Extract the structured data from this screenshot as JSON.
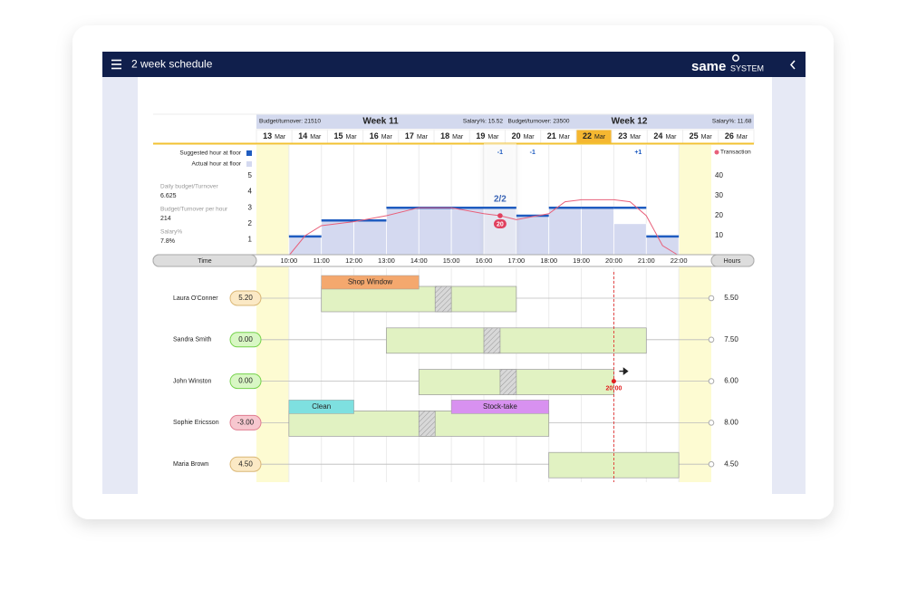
{
  "header": {
    "title": "2 week schedule",
    "logo": "same",
    "logo_suffix": "SYSTEM"
  },
  "weeks": [
    {
      "budget": "Budget/turnover: 21510",
      "title": "Week 11",
      "salary": "Salary%: 15.52"
    },
    {
      "budget": "Budget/turnover: 23500",
      "title": "Week 12",
      "salary": "Salary%: 11.68"
    }
  ],
  "days": [
    {
      "day": "13",
      "month": "Mar"
    },
    {
      "day": "14",
      "month": "Mar"
    },
    {
      "day": "15",
      "month": "Mar"
    },
    {
      "day": "16",
      "month": "Mar"
    },
    {
      "day": "17",
      "month": "Mar"
    },
    {
      "day": "18",
      "month": "Mar"
    },
    {
      "day": "19",
      "month": "Mar"
    },
    {
      "day": "20",
      "month": "Mar"
    },
    {
      "day": "21",
      "month": "Mar"
    },
    {
      "day": "22",
      "month": "Mar"
    },
    {
      "day": "23",
      "month": "Mar"
    },
    {
      "day": "24",
      "month": "Mar"
    },
    {
      "day": "25",
      "month": "Mar"
    },
    {
      "day": "26",
      "month": "Mar"
    }
  ],
  "selected_day": 9,
  "stats": [
    {
      "label": "Daily budget/Turnover",
      "value": "6.625"
    },
    {
      "label": "Budget/Turnover per hour",
      "value": "214"
    },
    {
      "label": "Salary%",
      "value": "7.8%"
    }
  ],
  "chart_data": {
    "type": "bar",
    "x": [
      10,
      11,
      12,
      13,
      14,
      15,
      16,
      17,
      18,
      19,
      20,
      21
    ],
    "series": [
      {
        "name": "Actual hour at floor",
        "color": "#d4d9f0",
        "values": [
          1.2,
          2.2,
          2.2,
          3,
          3,
          3,
          3,
          2.5,
          3,
          3,
          2,
          1.2
        ]
      },
      {
        "name": "Suggested hour at floor",
        "color": "#1f5cc0",
        "values": [
          1.2,
          2.2,
          2.2,
          3,
          3,
          3,
          3,
          2.5,
          3,
          3,
          3,
          1.2
        ]
      },
      {
        "name": "Transaction",
        "color": "#e8607a",
        "axis": "y2",
        "x": [
          10,
          10.5,
          11,
          12,
          13,
          14,
          15,
          16,
          16.5,
          17,
          18,
          18.5,
          19,
          20,
          20.5,
          21,
          21.5,
          22
        ],
        "values": [
          0,
          10,
          15,
          17,
          20,
          24,
          24,
          21,
          20,
          18,
          21,
          27,
          28,
          28,
          27,
          20,
          5,
          0
        ]
      }
    ],
    "xlim": [
      9,
      23
    ],
    "xticks": [
      {
        "value": 10,
        "label": "10:00"
      },
      {
        "value": 11,
        "label": "11:00"
      },
      {
        "value": 12,
        "label": "12:00"
      },
      {
        "value": 13,
        "label": "13:00"
      },
      {
        "value": 14,
        "label": "14:00"
      },
      {
        "value": 15,
        "label": "15:00"
      },
      {
        "value": 16,
        "label": "16:00"
      },
      {
        "value": 17,
        "label": "17:00"
      },
      {
        "value": 18,
        "label": "18:00"
      },
      {
        "value": 19,
        "label": "19:00"
      },
      {
        "value": 20,
        "label": "20:00"
      },
      {
        "value": 21,
        "label": "21:00"
      },
      {
        "value": 22,
        "label": "22:00"
      }
    ],
    "ylim": [
      0,
      5
    ],
    "yticks": [
      1,
      2,
      3,
      4,
      5
    ],
    "y2lim": [
      0,
      40
    ],
    "y2ticks": [
      10,
      20,
      30,
      40
    ],
    "annotations": [
      {
        "x": 16.5,
        "text": "-1"
      },
      {
        "x": 17.5,
        "text": "-1"
      },
      {
        "x": 20.75,
        "text": "+1"
      }
    ],
    "staffing_label": "2/2",
    "marker": {
      "x": 16.5,
      "value": 20
    },
    "time_label": "Time",
    "hours_label": "Hours"
  },
  "now": {
    "x": 20,
    "label": "20:00"
  },
  "employees": [
    {
      "name": "Laura O'Conner",
      "balance": "5.20",
      "hours": "5.50",
      "status": "warn",
      "shift": {
        "start": 11,
        "end": 17,
        "break_start": 14.5,
        "break_end": 15
      },
      "tasks": [
        {
          "label": "Shop Window",
          "start": 11,
          "end": 14,
          "color": "#f4a86e"
        }
      ]
    },
    {
      "name": "Sandra Smith",
      "balance": "0.00",
      "hours": "7.50",
      "status": "ok",
      "shift": {
        "start": 13,
        "end": 21,
        "break_start": 16,
        "break_end": 16.5
      },
      "tasks": []
    },
    {
      "name": "John Winston",
      "balance": "0.00",
      "hours": "6.00",
      "status": "ok",
      "shift": {
        "start": 14,
        "end": 20,
        "break_start": 16.5,
        "break_end": 17
      },
      "tasks": []
    },
    {
      "name": "Sophie Ericsson",
      "balance": "-3.00",
      "hours": "8.00",
      "status": "bad",
      "shift": {
        "start": 10,
        "end": 18,
        "break_start": 14,
        "break_end": 14.5
      },
      "tasks": [
        {
          "label": "Clean",
          "start": 10,
          "end": 12,
          "color": "#7ee0e0"
        },
        {
          "label": "Stock-take",
          "start": 15,
          "end": 18,
          "color": "#d891f0"
        }
      ]
    },
    {
      "name": "Maria Brown",
      "balance": "4.50",
      "hours": "4.50",
      "status": "warn",
      "shift": {
        "start": 18,
        "end": 22
      },
      "tasks": []
    }
  ]
}
